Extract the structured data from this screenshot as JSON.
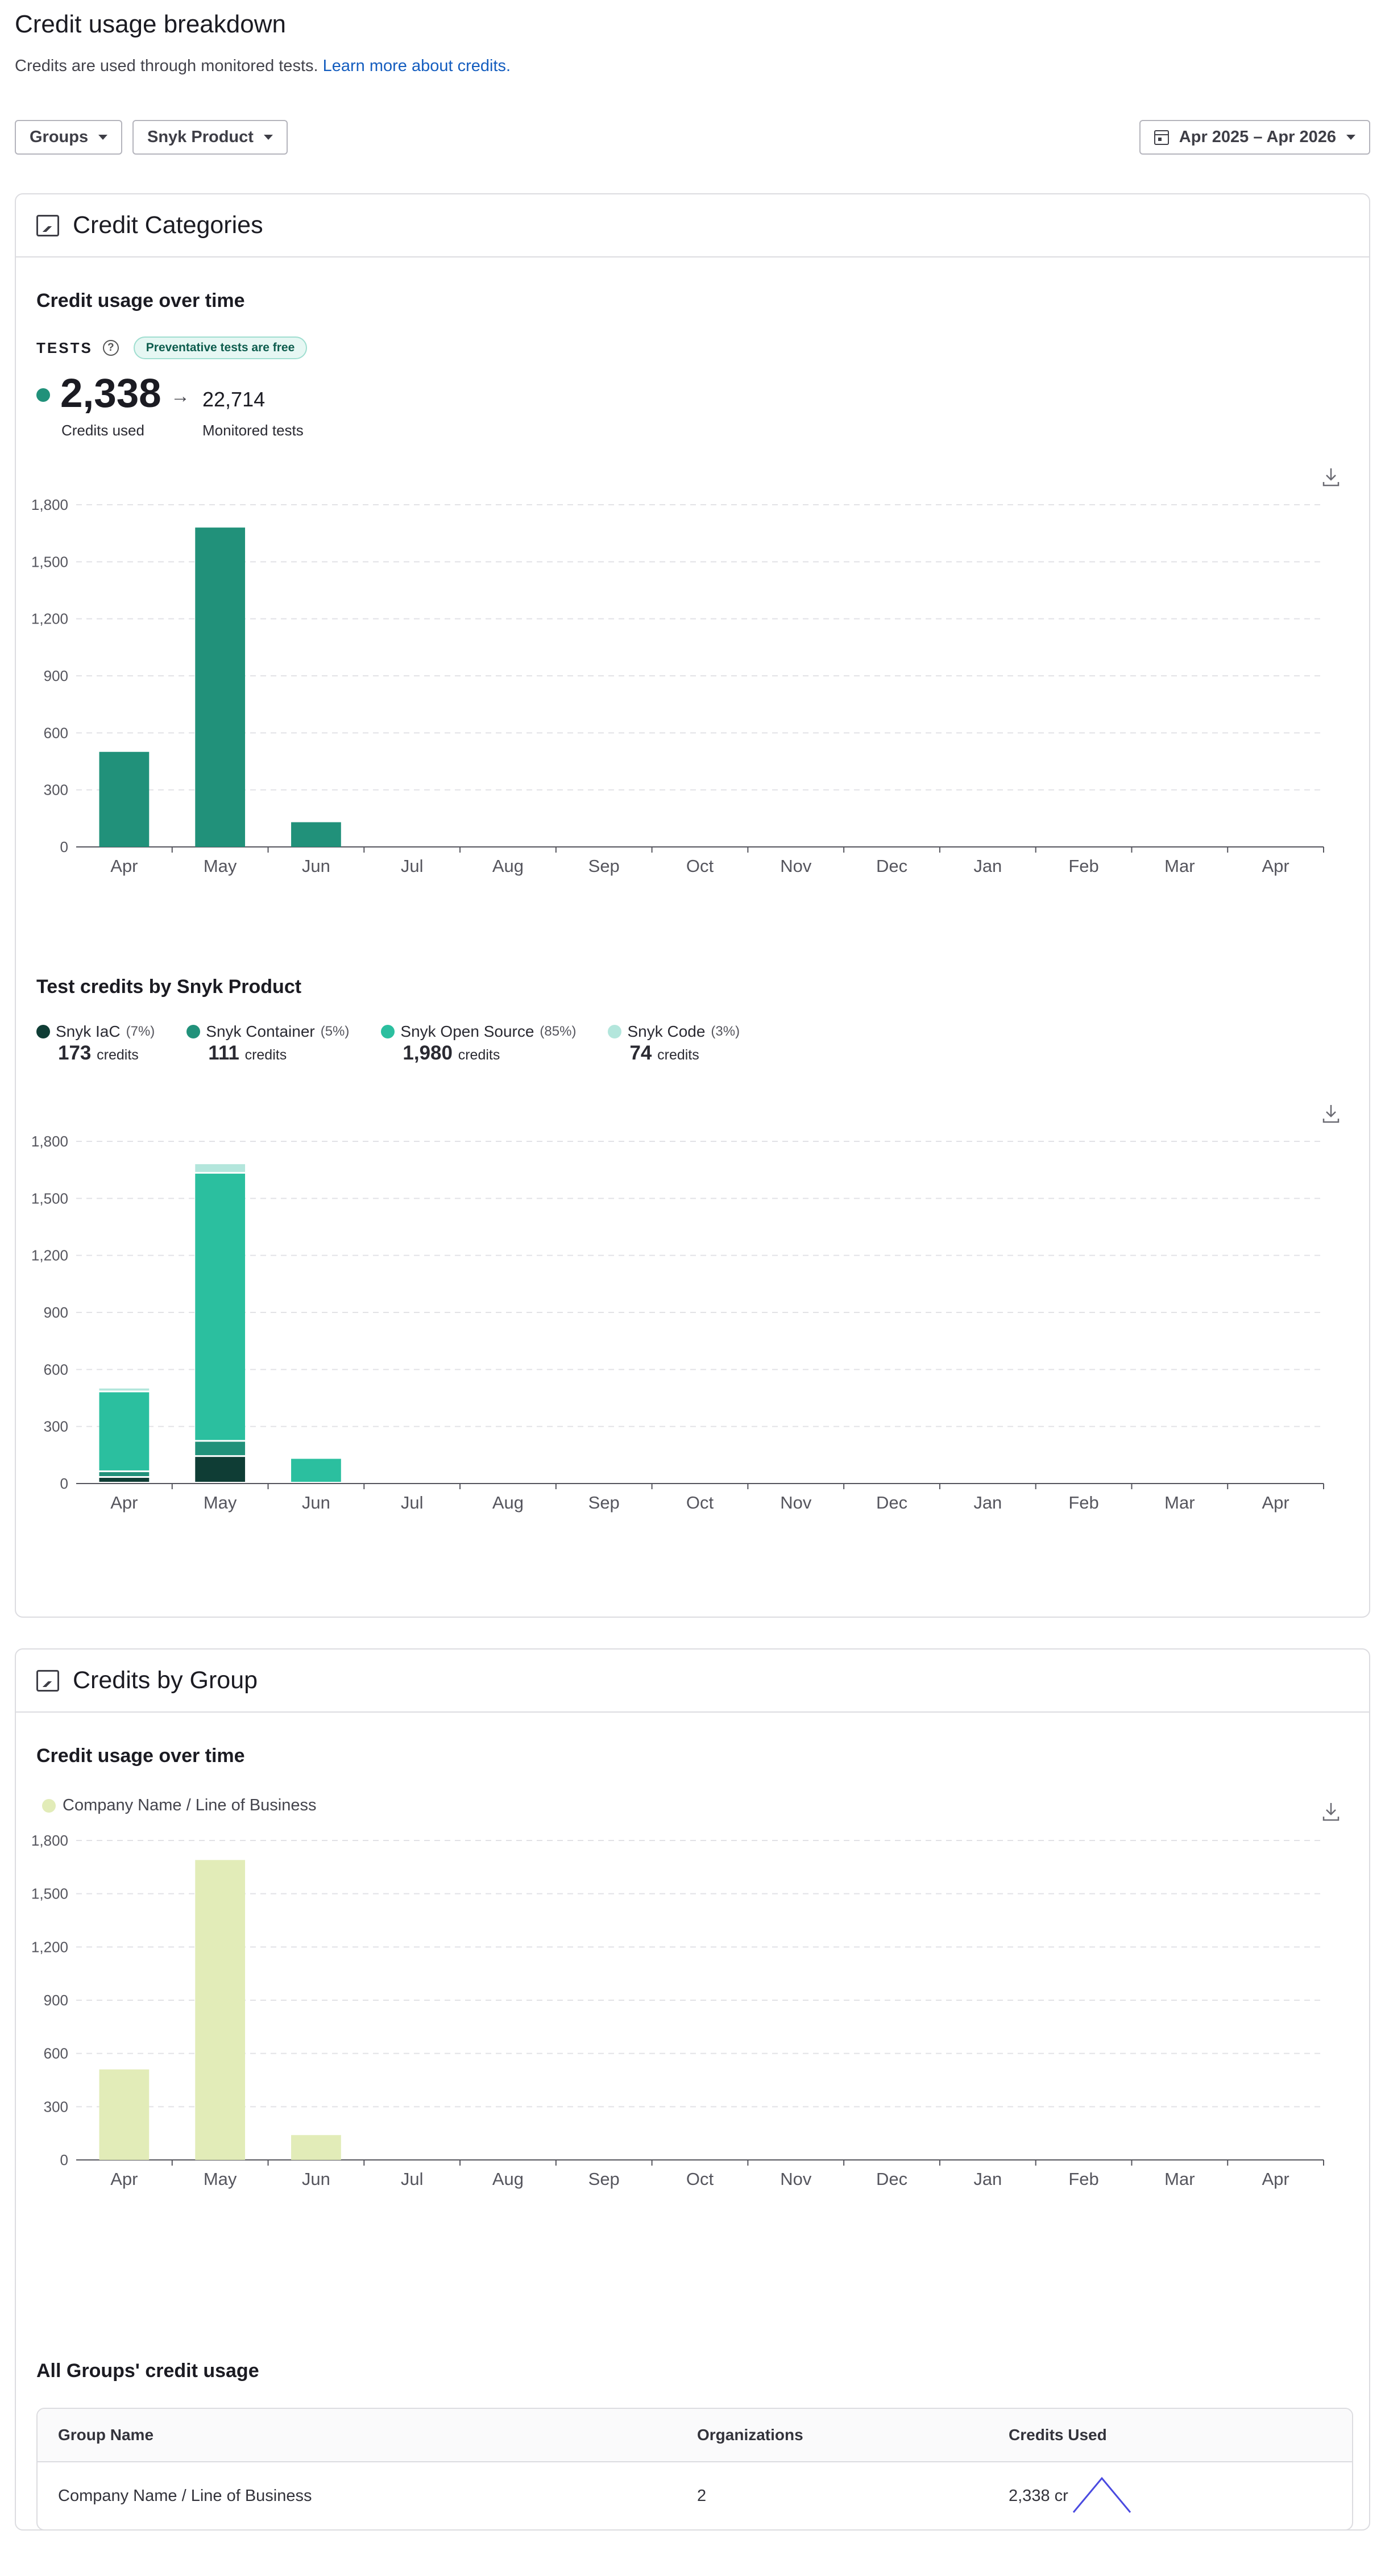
{
  "page": {
    "title": "Credit usage breakdown",
    "subtitle": "Credits are used through monitored tests.",
    "learn_more": "Learn more about credits."
  },
  "filters": {
    "groups_label": "Groups",
    "product_label": "Snyk Product",
    "date_range_label": "Apr 2025 – Apr 2026"
  },
  "credit_categories": {
    "title": "Credit Categories",
    "usage_title": "Credit usage over time",
    "tests_label": "TESTS",
    "help": "?",
    "pill": "Preventative tests are free",
    "credits_used_value": "2,338",
    "credits_used_label": "Credits used",
    "arrow": "→",
    "monitored_tests_value": "22,714",
    "monitored_tests_label": "Monitored tests",
    "product_title": "Test credits by Snyk Product",
    "legend": [
      {
        "name": "Snyk IaC",
        "pct": "(7%)",
        "value": "173",
        "unit": "credits",
        "color": "#0f3d35"
      },
      {
        "name": "Snyk Container",
        "pct": "(5%)",
        "value": "111",
        "unit": "credits",
        "color": "#21917a"
      },
      {
        "name": "Snyk Open Source",
        "pct": "(85%)",
        "value": "1,980",
        "unit": "credits",
        "color": "#2bbf9f"
      },
      {
        "name": "Snyk Code",
        "pct": "(3%)",
        "value": "74",
        "unit": "credits",
        "color": "#b3e6dc"
      }
    ]
  },
  "credits_by_group": {
    "title": "Credits by Group",
    "usage_title": "Credit usage over time",
    "legend_label": "Company Name / Line of Business",
    "table_title": "All Groups' credit usage",
    "table": {
      "headers": [
        "Group Name",
        "Organizations",
        "Credits Used"
      ],
      "rows": [
        {
          "group": "Company Name / Line of Business",
          "orgs": "2",
          "credits": "2,338 cr"
        }
      ]
    }
  },
  "chart_data": [
    {
      "type": "bar",
      "title": "Credit usage over time",
      "categories": [
        "Apr",
        "May",
        "Jun",
        "Jul",
        "Aug",
        "Sep",
        "Oct",
        "Nov",
        "Dec",
        "Jan",
        "Feb",
        "Mar",
        "Apr"
      ],
      "series": [
        {
          "values": [
            500,
            1680,
            130,
            0,
            0,
            0,
            0,
            0,
            0,
            0,
            0,
            0,
            0
          ],
          "color": "#21917a"
        }
      ],
      "yticks": [
        0,
        300,
        600,
        900,
        1200,
        1500,
        1800
      ],
      "ylim": [
        0,
        1800
      ],
      "grid": true
    },
    {
      "type": "bar",
      "stacked": true,
      "title": "Test credits by Snyk Product",
      "categories": [
        "Apr",
        "May",
        "Jun",
        "Jul",
        "Aug",
        "Sep",
        "Oct",
        "Nov",
        "Dec",
        "Jan",
        "Feb",
        "Mar",
        "Apr"
      ],
      "series": [
        {
          "name": "Snyk IaC",
          "values": [
            30,
            140,
            0,
            0,
            0,
            0,
            0,
            0,
            0,
            0,
            0,
            0,
            0
          ],
          "color": "#0f3d35"
        },
        {
          "name": "Snyk Container",
          "values": [
            30,
            80,
            0,
            0,
            0,
            0,
            0,
            0,
            0,
            0,
            0,
            0,
            0
          ],
          "color": "#21917a"
        },
        {
          "name": "Snyk Open Source",
          "values": [
            420,
            1410,
            130,
            0,
            0,
            0,
            0,
            0,
            0,
            0,
            0,
            0,
            0
          ],
          "color": "#2bbf9f"
        },
        {
          "name": "Snyk Code",
          "values": [
            20,
            50,
            0,
            0,
            0,
            0,
            0,
            0,
            0,
            0,
            0,
            0,
            0
          ],
          "color": "#b3e6dc"
        }
      ],
      "yticks": [
        0,
        300,
        600,
        900,
        1200,
        1500,
        1800
      ],
      "ylim": [
        0,
        1800
      ],
      "grid": true
    },
    {
      "type": "bar",
      "title": "Credit usage over time",
      "categories": [
        "Apr",
        "May",
        "Jun",
        "Jul",
        "Aug",
        "Sep",
        "Oct",
        "Nov",
        "Dec",
        "Jan",
        "Feb",
        "Mar",
        "Apr"
      ],
      "series": [
        {
          "name": "Company Name / Line of Business",
          "values": [
            510,
            1690,
            140,
            0,
            0,
            0,
            0,
            0,
            0,
            0,
            0,
            0,
            0
          ],
          "color": "#e2ecb8"
        }
      ],
      "yticks": [
        0,
        300,
        600,
        900,
        1200,
        1500,
        1800
      ],
      "ylim": [
        0,
        1800
      ],
      "grid": true
    },
    {
      "type": "line",
      "series": [
        {
          "values": [
            0,
            1,
            0
          ],
          "color": "#4a4ae0"
        }
      ]
    }
  ]
}
